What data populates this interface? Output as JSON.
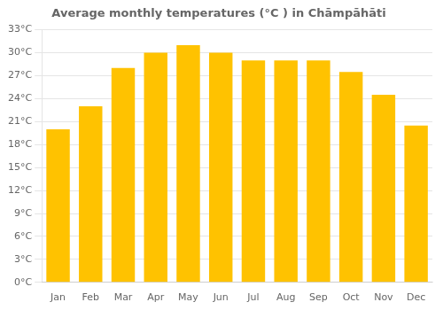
{
  "chart_data": {
    "type": "bar",
    "title": "Average monthly temperatures (°C ) in Chāmpāhāti",
    "categories": [
      "Jan",
      "Feb",
      "Mar",
      "Apr",
      "May",
      "Jun",
      "Jul",
      "Aug",
      "Sep",
      "Oct",
      "Nov",
      "Dec"
    ],
    "values": [
      20,
      23,
      28,
      30,
      31,
      30,
      29,
      29,
      29,
      27.5,
      24.5,
      20.5
    ],
    "color": "#FFC200",
    "ylim": [
      0,
      33
    ],
    "yticks": [
      {
        "value": 0,
        "label": "0°C"
      },
      {
        "value": 3,
        "label": "3°C"
      },
      {
        "value": 6,
        "label": "6°C"
      },
      {
        "value": 9,
        "label": "9°C"
      },
      {
        "value": 12,
        "label": "12°C"
      },
      {
        "value": 15,
        "label": "15°C"
      },
      {
        "value": 18,
        "label": "18°C"
      },
      {
        "value": 21,
        "label": "21°C"
      },
      {
        "value": 24,
        "label": "24°C"
      },
      {
        "value": 27,
        "label": "27°C"
      },
      {
        "value": 30,
        "label": "30°C"
      },
      {
        "value": 33,
        "label": "33°C"
      }
    ],
    "grid": true
  }
}
